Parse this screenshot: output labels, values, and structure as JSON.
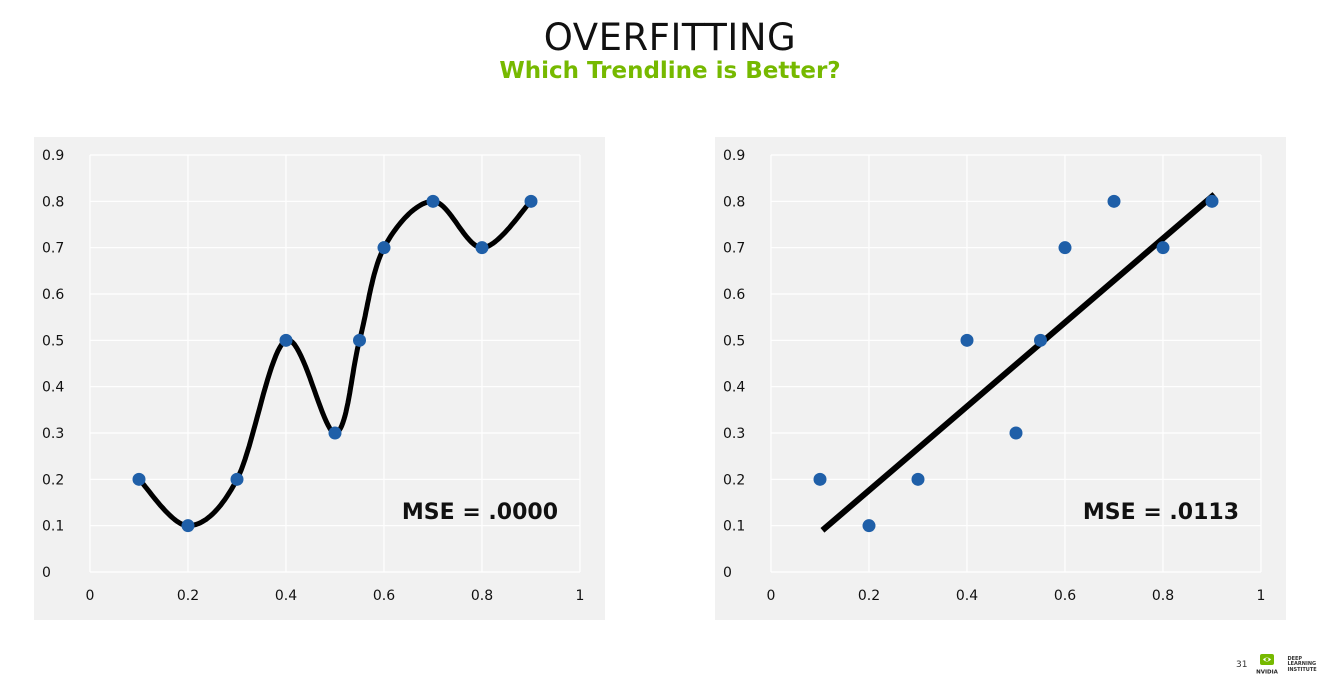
{
  "slide": {
    "title": "OVERFITTING",
    "subtitle": "Which Trendline is Better?",
    "page_number": "31",
    "logo_text": "NVIDIA",
    "logo_side_lines": [
      "DEEP",
      "LEARNING",
      "INSTITUTE"
    ]
  },
  "colors": {
    "accent": "#76b900",
    "point": "#1f5fa8",
    "line": "#000000",
    "panel_bg": "#f1f1f1",
    "grid": "#ffffff"
  },
  "chart_data": [
    {
      "type": "scatter",
      "title": "",
      "xlabel": "",
      "ylabel": "",
      "xlim": [
        0,
        1
      ],
      "ylim": [
        0,
        0.9
      ],
      "x_ticks": [
        "0",
        "0.2",
        "0.4",
        "0.6",
        "0.8",
        "1"
      ],
      "y_ticks": [
        "0",
        "0.1",
        "0.2",
        "0.3",
        "0.4",
        "0.5",
        "0.6",
        "0.7",
        "0.8",
        "0.9"
      ],
      "grid": true,
      "points": [
        {
          "x": 0.1,
          "y": 0.2
        },
        {
          "x": 0.2,
          "y": 0.1
        },
        {
          "x": 0.3,
          "y": 0.2
        },
        {
          "x": 0.4,
          "y": 0.5
        },
        {
          "x": 0.5,
          "y": 0.3
        },
        {
          "x": 0.55,
          "y": 0.5
        },
        {
          "x": 0.6,
          "y": 0.7
        },
        {
          "x": 0.7,
          "y": 0.8
        },
        {
          "x": 0.8,
          "y": 0.7
        },
        {
          "x": 0.9,
          "y": 0.8
        }
      ],
      "trendline": "smooth",
      "annotation": "MSE = .0000"
    },
    {
      "type": "scatter",
      "title": "",
      "xlabel": "",
      "ylabel": "",
      "xlim": [
        0,
        1
      ],
      "ylim": [
        0,
        0.9
      ],
      "x_ticks": [
        "0",
        "0.2",
        "0.4",
        "0.6",
        "0.8",
        "1"
      ],
      "y_ticks": [
        "0",
        "0.1",
        "0.2",
        "0.3",
        "0.4",
        "0.5",
        "0.6",
        "0.7",
        "0.8",
        "0.9"
      ],
      "grid": true,
      "points": [
        {
          "x": 0.1,
          "y": 0.2
        },
        {
          "x": 0.2,
          "y": 0.1
        },
        {
          "x": 0.3,
          "y": 0.2
        },
        {
          "x": 0.4,
          "y": 0.5
        },
        {
          "x": 0.5,
          "y": 0.3
        },
        {
          "x": 0.55,
          "y": 0.5
        },
        {
          "x": 0.6,
          "y": 0.7
        },
        {
          "x": 0.7,
          "y": 0.8
        },
        {
          "x": 0.8,
          "y": 0.7
        },
        {
          "x": 0.9,
          "y": 0.8
        }
      ],
      "trendline": "linear",
      "trendline_points": [
        {
          "x": 0.105,
          "y": 0.09
        },
        {
          "x": 0.905,
          "y": 0.815
        }
      ],
      "annotation": "MSE = .0113"
    }
  ]
}
